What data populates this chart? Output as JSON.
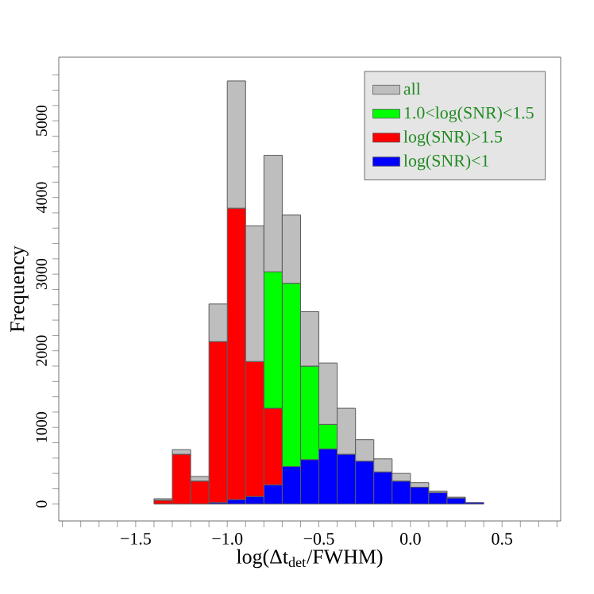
{
  "chart_data": {
    "type": "bar",
    "xlabel": "log(Δt$_{det}$/FWHM)",
    "ylabel": "Frequency",
    "stacked": true,
    "legend": "top right",
    "grid": false,
    "x": [
      -1.75,
      -1.65,
      -1.55,
      -1.45,
      -1.35,
      -1.25,
      -1.15,
      -1.05,
      -0.95,
      -0.85,
      -0.75,
      -0.65,
      -0.55,
      -0.45,
      -0.35,
      -0.25,
      -0.15,
      -0.05,
      0.05,
      0.15,
      0.25,
      0.35,
      0.45,
      0.55,
      0.65
    ],
    "series": [
      {
        "name": "log(SNR)<1",
        "color": "#0000ff",
        "values": [
          0,
          0,
          0,
          0,
          0,
          0,
          0,
          20,
          60,
          100,
          250,
          490,
          580,
          720,
          650,
          560,
          420,
          300,
          220,
          150,
          80,
          20,
          0,
          0,
          0
        ]
      },
      {
        "name": "log(SNR)>1.5",
        "color": "#ff0000",
        "values": [
          0,
          0,
          0,
          0,
          50,
          650,
          300,
          2100,
          3800,
          1760,
          1000,
          0,
          0,
          0,
          0,
          0,
          0,
          0,
          0,
          0,
          0,
          0,
          0,
          0,
          0
        ]
      },
      {
        "name": "1.0<log(SNR)<1.5",
        "color": "#00ff00",
        "values": [
          0,
          0,
          0,
          0,
          0,
          0,
          0,
          0,
          0,
          0,
          1780,
          2390,
          1220,
          320,
          0,
          0,
          0,
          0,
          0,
          0,
          0,
          0,
          0,
          0,
          0
        ]
      },
      {
        "name": "all",
        "color": "#bebebe",
        "values": [
          0,
          0,
          0,
          0,
          20,
          60,
          60,
          490,
          1660,
          1770,
          1520,
          890,
          710,
          800,
          600,
          280,
          170,
          100,
          60,
          20,
          10,
          0,
          0,
          0,
          0
        ]
      }
    ],
    "xlim": [
      -1.92,
      0.82
    ],
    "ylim": [
      -220,
      5830
    ],
    "xticks": [
      {
        "value": -1.9,
        "label": null
      },
      {
        "value": -1.8,
        "label": null
      },
      {
        "value": -1.7,
        "label": null
      },
      {
        "value": -1.6,
        "label": null
      },
      {
        "value": -1.5,
        "label": "−1.5"
      },
      {
        "value": -1.4,
        "label": null
      },
      {
        "value": -1.3,
        "label": null
      },
      {
        "value": -1.2,
        "label": null
      },
      {
        "value": -1.1,
        "label": null
      },
      {
        "value": -1.0,
        "label": "−1.0"
      },
      {
        "value": -0.9,
        "label": null
      },
      {
        "value": -0.8,
        "label": null
      },
      {
        "value": -0.7,
        "label": null
      },
      {
        "value": -0.6,
        "label": null
      },
      {
        "value": -0.5,
        "label": "−0.5"
      },
      {
        "value": -0.4,
        "label": null
      },
      {
        "value": -0.3,
        "label": null
      },
      {
        "value": -0.2,
        "label": null
      },
      {
        "value": -0.1,
        "label": null
      },
      {
        "value": 0.0,
        "label": "0.0"
      },
      {
        "value": 0.1,
        "label": null
      },
      {
        "value": 0.2,
        "label": null
      },
      {
        "value": 0.3,
        "label": null
      },
      {
        "value": 0.4,
        "label": null
      },
      {
        "value": 0.5,
        "label": "0.5"
      },
      {
        "value": 0.6,
        "label": null
      },
      {
        "value": 0.7,
        "label": null
      },
      {
        "value": 0.8,
        "label": null
      }
    ],
    "yticks": [
      0,
      {
        "value": 200,
        "label": null
      },
      {
        "value": 400,
        "label": null
      },
      {
        "value": 600,
        "label": null
      },
      {
        "value": 800,
        "label": null
      },
      1000,
      {
        "value": 1200,
        "label": null
      },
      {
        "value": 1400,
        "label": null
      },
      {
        "value": 1600,
        "label": null
      },
      {
        "value": 1800,
        "label": null
      },
      2000,
      {
        "value": 2200,
        "label": null
      },
      {
        "value": 2400,
        "label": null
      },
      {
        "value": 2600,
        "label": null
      },
      {
        "value": 2800,
        "label": null
      },
      3000,
      {
        "value": 3200,
        "label": null
      },
      {
        "value": 3400,
        "label": null
      },
      {
        "value": 3600,
        "label": null
      },
      {
        "value": 3800,
        "label": null
      },
      4000,
      {
        "value": 4200,
        "label": null
      },
      {
        "value": 4400,
        "label": null
      },
      {
        "value": 4600,
        "label": null
      },
      {
        "value": 4800,
        "label": null
      },
      5000,
      {
        "value": 5200,
        "label": null
      },
      {
        "value": 5400,
        "label": null
      },
      {
        "value": 5600,
        "label": null
      }
    ]
  }
}
